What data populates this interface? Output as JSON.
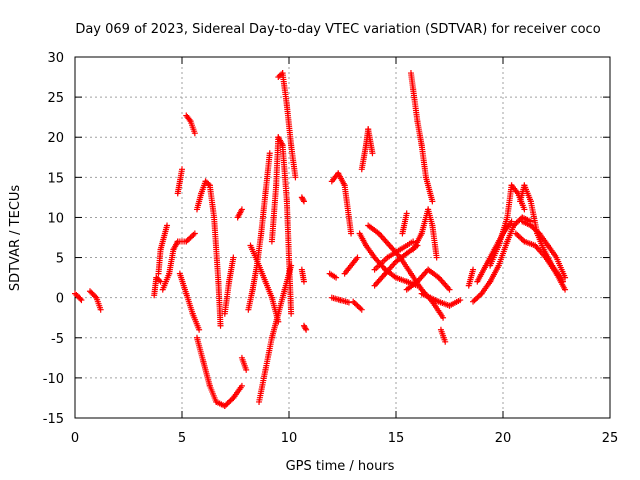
{
  "chart_data": {
    "type": "scatter",
    "title": "Day 069 of 2023, Sidereal Day-to-day VTEC variation (SDTVAR) for receiver coco",
    "xlabel": "GPS time / hours",
    "ylabel": "SDTVAR / TECUs",
    "xlim": [
      0,
      25
    ],
    "ylim": [
      -15,
      30
    ],
    "xticks": [
      0,
      5,
      10,
      15,
      20,
      25
    ],
    "yticks": [
      -15,
      -10,
      -5,
      0,
      5,
      10,
      15,
      20,
      25,
      30
    ],
    "grid": true,
    "marker": "+",
    "color": "#ff0000",
    "tracks": [
      {
        "name": "arc-01",
        "points": [
          [
            0.0,
            0.5
          ],
          [
            0.2,
            0.0
          ],
          [
            0.3,
            -0.3
          ]
        ]
      },
      {
        "name": "arc-02",
        "points": [
          [
            0.7,
            0.8
          ],
          [
            1.0,
            0.0
          ],
          [
            1.2,
            -1.5
          ]
        ]
      },
      {
        "name": "arc-03",
        "points": [
          [
            3.7,
            0.3
          ],
          [
            3.8,
            2.5
          ],
          [
            4.0,
            2.0
          ]
        ]
      },
      {
        "name": "arc-04",
        "points": [
          [
            3.9,
            3.0
          ],
          [
            4.0,
            6.0
          ],
          [
            4.3,
            9.0
          ]
        ]
      },
      {
        "name": "arc-05",
        "points": [
          [
            4.1,
            1.0
          ],
          [
            4.4,
            3.0
          ],
          [
            4.6,
            6.0
          ],
          [
            4.8,
            7.0
          ],
          [
            5.2,
            7.0
          ],
          [
            5.6,
            8.0
          ]
        ]
      },
      {
        "name": "arc-06",
        "points": [
          [
            4.8,
            13.0
          ],
          [
            5.0,
            16.0
          ]
        ]
      },
      {
        "name": "arc-07",
        "points": [
          [
            4.9,
            3.0
          ],
          [
            5.2,
            0.5
          ],
          [
            5.5,
            -2.0
          ],
          [
            5.8,
            -4.0
          ]
        ]
      },
      {
        "name": "arc-08",
        "points": [
          [
            5.2,
            22.7
          ],
          [
            5.4,
            22.0
          ],
          [
            5.6,
            20.5
          ]
        ]
      },
      {
        "name": "arc-09",
        "points": [
          [
            5.7,
            11.0
          ],
          [
            5.9,
            13.0
          ],
          [
            6.1,
            14.5
          ],
          [
            6.3,
            14.0
          ],
          [
            6.5,
            10.0
          ],
          [
            6.7,
            2.0
          ],
          [
            6.8,
            -3.5
          ]
        ]
      },
      {
        "name": "arc-10",
        "points": [
          [
            5.7,
            -5.0
          ],
          [
            6.0,
            -8.0
          ],
          [
            6.3,
            -11.0
          ],
          [
            6.6,
            -13.0
          ],
          [
            7.0,
            -13.5
          ],
          [
            7.4,
            -12.5
          ],
          [
            7.8,
            -11.0
          ]
        ]
      },
      {
        "name": "arc-11",
        "points": [
          [
            7.0,
            -2.0
          ],
          [
            7.2,
            2.0
          ],
          [
            7.4,
            5.0
          ]
        ]
      },
      {
        "name": "arc-12",
        "points": [
          [
            7.6,
            10.0
          ],
          [
            7.8,
            11.0
          ]
        ]
      },
      {
        "name": "arc-13",
        "points": [
          [
            7.8,
            -7.5
          ],
          [
            8.0,
            -9.0
          ]
        ]
      },
      {
        "name": "arc-14",
        "points": [
          [
            8.1,
            -1.5
          ],
          [
            8.3,
            1.0
          ],
          [
            8.5,
            4.0
          ],
          [
            8.7,
            8.0
          ],
          [
            8.9,
            13.0
          ],
          [
            9.1,
            18.0
          ]
        ]
      },
      {
        "name": "arc-15",
        "points": [
          [
            8.2,
            6.5
          ],
          [
            8.6,
            4.0
          ],
          [
            8.9,
            2.0
          ],
          [
            9.2,
            0.0
          ],
          [
            9.5,
            -3.0
          ]
        ]
      },
      {
        "name": "arc-16",
        "points": [
          [
            8.6,
            -13.0
          ],
          [
            8.9,
            -9.0
          ],
          [
            9.2,
            -5.0
          ],
          [
            9.5,
            -2.0
          ],
          [
            9.8,
            1.0
          ],
          [
            10.1,
            4.0
          ]
        ]
      },
      {
        "name": "arc-17",
        "points": [
          [
            9.2,
            7.0
          ],
          [
            9.4,
            14.0
          ],
          [
            9.5,
            20.0
          ],
          [
            9.7,
            19.0
          ],
          [
            9.9,
            12.0
          ],
          [
            10.0,
            5.0
          ],
          [
            10.1,
            -2.0
          ]
        ]
      },
      {
        "name": "arc-18",
        "points": [
          [
            9.5,
            27.5
          ],
          [
            9.7,
            28.0
          ],
          [
            9.9,
            24.0
          ],
          [
            10.1,
            19.0
          ],
          [
            10.3,
            15.0
          ]
        ]
      },
      {
        "name": "arc-19",
        "points": [
          [
            10.6,
            12.5
          ],
          [
            10.7,
            12.0
          ]
        ]
      },
      {
        "name": "arc-20",
        "points": [
          [
            10.6,
            3.5
          ],
          [
            10.7,
            2.0
          ]
        ]
      },
      {
        "name": "arc-21",
        "points": [
          [
            10.7,
            -3.5
          ],
          [
            10.8,
            -4.0
          ]
        ]
      },
      {
        "name": "arc-22",
        "points": [
          [
            11.9,
            3.0
          ],
          [
            12.2,
            2.5
          ]
        ]
      },
      {
        "name": "arc-23",
        "points": [
          [
            12.0,
            0.0
          ],
          [
            12.4,
            -0.3
          ],
          [
            12.8,
            -0.6
          ]
        ]
      },
      {
        "name": "arc-24",
        "points": [
          [
            12.0,
            14.5
          ],
          [
            12.3,
            15.5
          ],
          [
            12.6,
            14.0
          ],
          [
            12.9,
            8.0
          ]
        ]
      },
      {
        "name": "arc-25",
        "points": [
          [
            12.6,
            3.0
          ],
          [
            13.2,
            5.0
          ]
        ]
      },
      {
        "name": "arc-26",
        "points": [
          [
            13.0,
            -0.5
          ],
          [
            13.4,
            -1.5
          ]
        ]
      },
      {
        "name": "arc-27",
        "points": [
          [
            13.3,
            8.0
          ],
          [
            13.6,
            6.5
          ],
          [
            14.0,
            5.0
          ],
          [
            14.5,
            3.5
          ],
          [
            15.0,
            2.5
          ],
          [
            15.5,
            2.0
          ],
          [
            16.0,
            1.5
          ]
        ]
      },
      {
        "name": "arc-28",
        "points": [
          [
            13.4,
            16.0
          ],
          [
            13.6,
            19.0
          ],
          [
            13.7,
            21.0
          ],
          [
            13.9,
            18.0
          ]
        ]
      },
      {
        "name": "arc-29",
        "points": [
          [
            13.7,
            9.0
          ],
          [
            14.2,
            8.0
          ],
          [
            14.7,
            6.5
          ],
          [
            15.2,
            5.0
          ],
          [
            15.7,
            3.0
          ],
          [
            16.2,
            1.0
          ],
          [
            16.7,
            -0.5
          ],
          [
            17.2,
            -2.5
          ]
        ]
      },
      {
        "name": "arc-30",
        "points": [
          [
            14.0,
            1.5
          ],
          [
            14.5,
            3.0
          ],
          [
            15.0,
            4.5
          ],
          [
            15.5,
            5.5
          ],
          [
            16.0,
            6.5
          ]
        ]
      },
      {
        "name": "arc-31",
        "points": [
          [
            14.0,
            3.5
          ],
          [
            14.6,
            5.0
          ],
          [
            15.2,
            6.0
          ],
          [
            15.8,
            7.0
          ]
        ]
      },
      {
        "name": "arc-32",
        "points": [
          [
            15.3,
            8.0
          ],
          [
            15.5,
            10.5
          ]
        ]
      },
      {
        "name": "arc-33",
        "points": [
          [
            15.7,
            28.0
          ],
          [
            15.8,
            26.0
          ],
          [
            16.0,
            22.0
          ],
          [
            16.2,
            19.0
          ],
          [
            16.4,
            15.0
          ],
          [
            16.7,
            12.0
          ]
        ]
      },
      {
        "name": "arc-34",
        "points": [
          [
            15.8,
            6.0
          ],
          [
            16.2,
            8.0
          ],
          [
            16.5,
            11.0
          ],
          [
            16.7,
            9.0
          ],
          [
            16.9,
            5.0
          ]
        ]
      },
      {
        "name": "arc-35",
        "points": [
          [
            15.5,
            1.0
          ],
          [
            16.0,
            2.0
          ],
          [
            16.5,
            3.5
          ],
          [
            17.0,
            2.5
          ],
          [
            17.5,
            1.0
          ]
        ]
      },
      {
        "name": "arc-36",
        "points": [
          [
            16.2,
            0.5
          ],
          [
            16.6,
            0.0
          ],
          [
            17.0,
            -0.5
          ],
          [
            17.5,
            -1.0
          ],
          [
            18.0,
            -0.3
          ]
        ]
      },
      {
        "name": "arc-37",
        "points": [
          [
            17.1,
            -4.0
          ],
          [
            17.3,
            -5.5
          ]
        ]
      },
      {
        "name": "arc-38",
        "points": [
          [
            18.4,
            1.5
          ],
          [
            18.6,
            3.5
          ]
        ]
      },
      {
        "name": "arc-39",
        "points": [
          [
            18.6,
            -0.5
          ],
          [
            19.0,
            0.5
          ],
          [
            19.4,
            2.0
          ],
          [
            19.8,
            4.0
          ],
          [
            20.2,
            7.0
          ],
          [
            20.5,
            9.0
          ],
          [
            20.9,
            10.0
          ],
          [
            21.3,
            9.5
          ]
        ]
      },
      {
        "name": "arc-40",
        "points": [
          [
            18.8,
            2.0
          ],
          [
            19.2,
            4.0
          ],
          [
            19.6,
            6.0
          ],
          [
            20.0,
            8.0
          ],
          [
            20.4,
            9.5
          ]
        ]
      },
      {
        "name": "arc-41",
        "points": [
          [
            19.4,
            4.0
          ],
          [
            19.8,
            6.5
          ],
          [
            20.2,
            10.0
          ],
          [
            20.4,
            14.0
          ],
          [
            20.7,
            13.0
          ],
          [
            21.0,
            11.0
          ]
        ]
      },
      {
        "name": "arc-42",
        "points": [
          [
            20.6,
            8.0
          ],
          [
            21.0,
            7.0
          ],
          [
            21.5,
            6.5
          ],
          [
            22.0,
            5.0
          ],
          [
            22.5,
            3.0
          ],
          [
            22.9,
            1.0
          ]
        ]
      },
      {
        "name": "arc-43",
        "points": [
          [
            20.8,
            12.0
          ],
          [
            21.0,
            14.0
          ],
          [
            21.3,
            12.0
          ],
          [
            21.6,
            8.0
          ],
          [
            21.9,
            6.0
          ],
          [
            22.3,
            4.0
          ],
          [
            22.8,
            2.0
          ]
        ]
      },
      {
        "name": "arc-44",
        "points": [
          [
            20.9,
            9.5
          ],
          [
            21.3,
            9.0
          ],
          [
            21.7,
            8.0
          ],
          [
            22.1,
            6.5
          ],
          [
            22.5,
            5.0
          ],
          [
            22.9,
            2.5
          ]
        ]
      }
    ]
  }
}
